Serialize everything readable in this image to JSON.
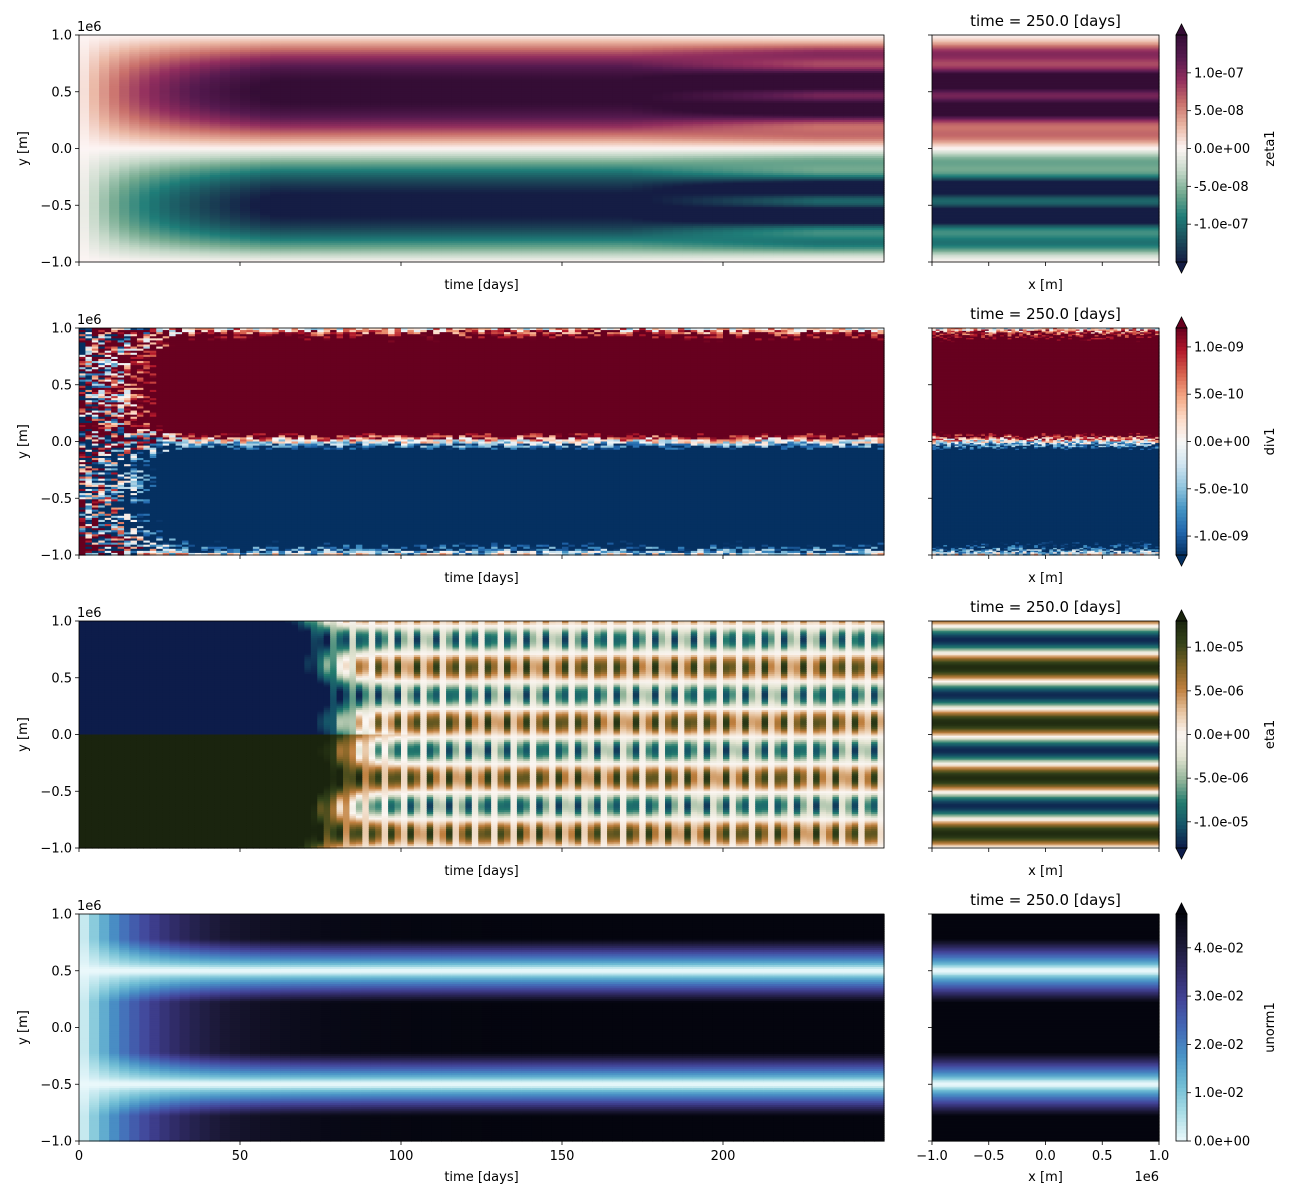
{
  "figure": {
    "time_axis_label": "time [days]",
    "x_axis_label": "x [m]",
    "y_axis_label": "y [m]",
    "exponent_label": "1e6"
  },
  "chart_data": [
    {
      "type": "heatmap",
      "variable": "zeta1",
      "hovmoller": {
        "xlabel": "time [days]",
        "ylabel": "y [m]",
        "xlim": [
          0,
          250
        ],
        "ylim": [
          -1000000,
          1000000
        ],
        "xticks": [
          0,
          50,
          100,
          150,
          200
        ],
        "yticks": [
          -1.0,
          -0.5,
          0.0,
          0.5,
          1.0
        ],
        "y_offset": "1e6"
      },
      "snapshot": {
        "title": "time = 250.0 [days]",
        "xlabel": "x [m]",
        "xlim": [
          -1000000,
          1000000
        ],
        "xticks": [
          -1.0,
          -0.5,
          0.0,
          0.5,
          1.0
        ]
      },
      "colorbar": {
        "label": "zeta1",
        "colormap": "curl",
        "extend": "both",
        "vmin": -1.5e-07,
        "vmax": 1.5e-07,
        "ticks": [
          -1e-07,
          -5e-08,
          0.0,
          5e-08,
          1e-07
        ],
        "tick_labels": [
          "-1.0e-07",
          "-5.0e-08",
          "0.0e+00",
          "5.0e-08",
          "1.0e-07"
        ]
      }
    },
    {
      "type": "heatmap",
      "variable": "div1",
      "hovmoller": {
        "xlabel": "time [days]",
        "ylabel": "y [m]",
        "xlim": [
          0,
          250
        ],
        "ylim": [
          -1000000,
          1000000
        ],
        "xticks": [
          0,
          50,
          100,
          150,
          200
        ],
        "yticks": [
          -1.0,
          -0.5,
          0.0,
          0.5,
          1.0
        ],
        "y_offset": "1e6"
      },
      "snapshot": {
        "title": "time = 250.0 [days]",
        "xlabel": "x [m]",
        "xlim": [
          -1000000,
          1000000
        ],
        "xticks": [
          -1.0,
          -0.5,
          0.0,
          0.5,
          1.0
        ]
      },
      "colorbar": {
        "label": "div1",
        "colormap": "RdBu_r",
        "extend": "both",
        "vmin": -1.2e-09,
        "vmax": 1.2e-09,
        "ticks": [
          -1e-09,
          -5e-10,
          0.0,
          5e-10,
          1e-09
        ],
        "tick_labels": [
          "-1.0e-09",
          "-5.0e-10",
          "0.0e+00",
          "5.0e-10",
          "1.0e-09"
        ]
      }
    },
    {
      "type": "heatmap",
      "variable": "eta1",
      "hovmoller": {
        "xlabel": "time [days]",
        "ylabel": "y [m]",
        "xlim": [
          0,
          250
        ],
        "ylim": [
          -1000000,
          1000000
        ],
        "xticks": [
          0,
          50,
          100,
          150,
          200
        ],
        "yticks": [
          -1.0,
          -0.5,
          0.0,
          0.5,
          1.0
        ],
        "y_offset": "1e6"
      },
      "snapshot": {
        "title": "time = 250.0 [days]",
        "xlabel": "x [m]",
        "xlim": [
          -1000000,
          1000000
        ],
        "xticks": [
          -1.0,
          -0.5,
          0.0,
          0.5,
          1.0
        ]
      },
      "colorbar": {
        "label": "eta1",
        "colormap": "tarn",
        "extend": "both",
        "vmin": -1.3e-05,
        "vmax": 1.3e-05,
        "ticks": [
          -1e-05,
          -5e-06,
          0.0,
          5e-06,
          1e-05
        ],
        "tick_labels": [
          "-1.0e-05",
          "-5.0e-06",
          "0.0e+00",
          "5.0e-06",
          "1.0e-05"
        ]
      }
    },
    {
      "type": "heatmap",
      "variable": "unorm1",
      "hovmoller": {
        "xlabel": "time [days]",
        "ylabel": "y [m]",
        "xlim": [
          0,
          250
        ],
        "ylim": [
          -1000000,
          1000000
        ],
        "xticks": [
          0,
          50,
          100,
          150,
          200
        ],
        "yticks": [
          -1.0,
          -0.5,
          0.0,
          0.5,
          1.0
        ],
        "xtick_labels_shown": true,
        "y_offset": "1e6"
      },
      "snapshot": {
        "title": "time = 250.0 [days]",
        "xlabel": "x [m]",
        "xlim": [
          -1000000,
          1000000
        ],
        "xticks": [
          -1.0,
          -0.5,
          0.0,
          0.5,
          1.0
        ],
        "xtick_labels": [
          "−1.0",
          "−0.5",
          "0.0",
          "0.5",
          "1.0"
        ],
        "x_offset": "1e6"
      },
      "colorbar": {
        "label": "unorm1",
        "colormap": "ice_r",
        "extend": "max",
        "vmin": 0.0,
        "vmax": 0.047,
        "ticks": [
          0.0,
          0.01,
          0.02,
          0.03,
          0.04
        ],
        "tick_labels": [
          "0.0e+00",
          "1.0e-02",
          "2.0e-02",
          "3.0e-02",
          "4.0e-02"
        ]
      }
    }
  ],
  "colormaps": {
    "curl": [
      "#151d44",
      "#1c4e5c",
      "#1f7d78",
      "#72a98f",
      "#c4d8c8",
      "#fdf5f4",
      "#eab6a3",
      "#c9706b",
      "#922e5e",
      "#561a4f",
      "#340d35"
    ],
    "RdBu_r": [
      "#053061",
      "#2166ac",
      "#4393c3",
      "#92c5de",
      "#d1e5f0",
      "#f7f7f7",
      "#fddbc7",
      "#f4a582",
      "#d6604d",
      "#b2182b",
      "#67001f"
    ],
    "tarn": [
      "#0d1c4a",
      "#155468",
      "#237b6e",
      "#93b59a",
      "#e2e3d1",
      "#fbf6f2",
      "#e7c4a0",
      "#bf7f3e",
      "#7c6124",
      "#35441a",
      "#1a240e"
    ],
    "ice_r": [
      "#eaf8fb",
      "#a9dde6",
      "#6fbcd4",
      "#4a93c6",
      "#4468b6",
      "#424397",
      "#2f2a64",
      "#191732",
      "#04050e"
    ]
  }
}
